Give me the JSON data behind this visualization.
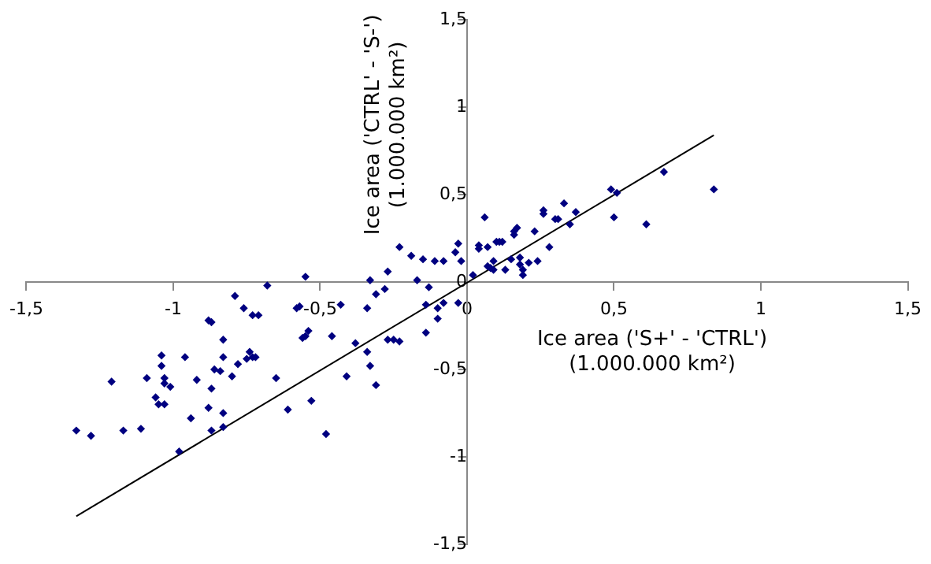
{
  "chart_data": {
    "type": "scatter",
    "xlabel": "Ice area ('S+' - 'CTRL')\n(1.000.000 km²)",
    "ylabel": "Ice area ('CTRL' - 'S-')\n(1.000.000 km²)",
    "xlim": [
      -1.5,
      1.5
    ],
    "ylim": [
      -1.5,
      1.5
    ],
    "xticks": [
      {
        "value": -1.5,
        "label": "-1,5"
      },
      -1,
      {
        "value": -0.5,
        "label": "-0,5"
      },
      0,
      {
        "value": 0.5,
        "label": "0,5"
      },
      1,
      {
        "value": 1.5,
        "label": "1,5"
      }
    ],
    "yticks": [
      {
        "value": -1.5,
        "label": "-1,5"
      },
      -1,
      {
        "value": -0.5,
        "label": "-0,5"
      },
      0,
      {
        "value": 0.5,
        "label": "0,5"
      },
      1,
      {
        "value": 1.5,
        "label": "1,5"
      }
    ],
    "grid": false,
    "legend": false,
    "marker": "diamond",
    "series": [
      {
        "color": "#000080",
        "x": [
          -1.33,
          -1.28,
          -1.21,
          -1.17,
          -1.11,
          -1.09,
          -1.06,
          -1.05,
          -1.04,
          -1.04,
          -1.03,
          -1.03,
          -1.03,
          -1.01,
          -0.98,
          -0.96,
          -0.94,
          -0.92,
          -0.88,
          -0.88,
          -0.87,
          -0.87,
          -0.87,
          -0.86,
          -0.84,
          -0.83,
          -0.83,
          -0.83,
          -0.83,
          -0.8,
          -0.79,
          -0.78,
          -0.76,
          -0.75,
          -0.74,
          -0.73,
          -0.73,
          -0.72,
          -0.71,
          -0.68,
          -0.65,
          -0.61,
          -0.58,
          -0.57,
          -0.56,
          -0.55,
          -0.55,
          -0.54,
          -0.53,
          -0.48,
          -0.46,
          -0.43,
          -0.41,
          -0.38,
          -0.34,
          -0.34,
          -0.33,
          -0.33,
          -0.31,
          -0.31,
          -0.28,
          -0.27,
          -0.27,
          -0.25,
          -0.23,
          -0.23,
          -0.19,
          -0.17,
          -0.15,
          -0.14,
          -0.14,
          -0.13,
          -0.11,
          -0.1,
          -0.1,
          -0.08,
          -0.08,
          -0.04,
          -0.03,
          -0.03,
          -0.02,
          0.02,
          0.04,
          0.04,
          0.06,
          0.07,
          0.07,
          0.08,
          0.09,
          0.09,
          0.1,
          0.11,
          0.12,
          0.13,
          0.15,
          0.16,
          0.16,
          0.17,
          0.18,
          0.18,
          0.19,
          0.19,
          0.21,
          0.23,
          0.24,
          0.26,
          0.26,
          0.28,
          0.3,
          0.31,
          0.33,
          0.35,
          0.37,
          0.49,
          0.5,
          0.51,
          0.61,
          0.67,
          0.84
        ],
        "values": [
          -0.85,
          -0.88,
          -0.57,
          -0.85,
          -0.84,
          -0.55,
          -0.66,
          -0.7,
          -0.42,
          -0.48,
          -0.7,
          -0.55,
          -0.58,
          -0.6,
          -0.97,
          -0.43,
          -0.78,
          -0.56,
          -0.72,
          -0.22,
          -0.23,
          -0.61,
          -0.85,
          -0.5,
          -0.51,
          -0.75,
          -0.83,
          -0.33,
          -0.43,
          -0.54,
          -0.08,
          -0.47,
          -0.15,
          -0.44,
          -0.4,
          -0.43,
          -0.19,
          -0.43,
          -0.19,
          -0.02,
          -0.55,
          -0.73,
          -0.15,
          -0.14,
          -0.32,
          -0.31,
          0.03,
          -0.28,
          -0.68,
          -0.87,
          -0.31,
          -0.13,
          -0.54,
          -0.35,
          -0.4,
          -0.15,
          -0.48,
          0.01,
          -0.07,
          -0.59,
          -0.04,
          0.06,
          -0.33,
          -0.33,
          0.2,
          -0.34,
          0.15,
          0.01,
          0.13,
          -0.13,
          -0.29,
          -0.03,
          0.12,
          -0.15,
          -0.21,
          0.12,
          -0.12,
          0.17,
          0.22,
          -0.12,
          0.12,
          0.04,
          0.19,
          0.21,
          0.37,
          0.09,
          0.2,
          0.08,
          0.12,
          0.07,
          0.23,
          0.23,
          0.23,
          0.07,
          0.13,
          0.27,
          0.29,
          0.31,
          0.14,
          0.1,
          0.07,
          0.04,
          0.11,
          0.29,
          0.12,
          0.41,
          0.39,
          0.2,
          0.36,
          0.36,
          0.45,
          0.33,
          0.4,
          0.53,
          0.37,
          0.51,
          0.33,
          0.63,
          0.53
        ]
      },
      {
        "type": "line",
        "color": "#000000",
        "marker": "none",
        "x": [
          -1.33,
          0.84
        ],
        "values": [
          -1.34,
          0.84
        ]
      }
    ]
  }
}
